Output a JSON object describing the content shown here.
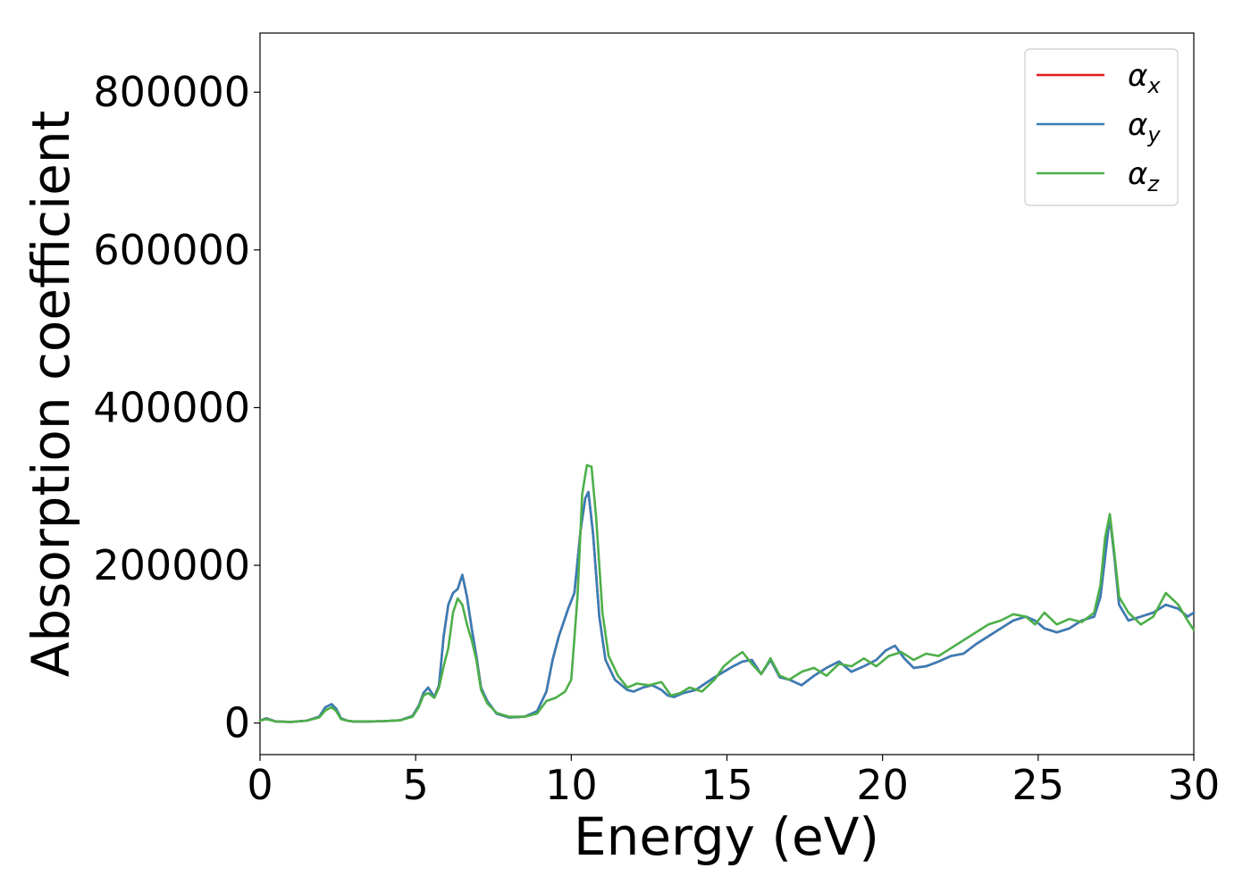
{
  "chart_data": {
    "type": "line",
    "xlabel": "Energy (eV)",
    "ylabel": "Absorption coefficient",
    "xlim": [
      0,
      30
    ],
    "ylim": [
      -40000,
      875000
    ],
    "xticks": [
      0,
      5,
      10,
      15,
      20,
      25,
      30
    ],
    "yticks": [
      0,
      200000,
      400000,
      600000,
      800000
    ],
    "xtick_labels": [
      "0",
      "5",
      "10",
      "15",
      "20",
      "25",
      "30"
    ],
    "ytick_labels": [
      "0",
      "200000",
      "400000",
      "600000",
      "800000"
    ],
    "grid": false,
    "legend_position": "top-right",
    "series": [
      {
        "name": "α_x",
        "legend_symbol": "α",
        "legend_sub": "x",
        "color": "#e41a1c",
        "x": [
          0,
          0.2,
          0.5,
          1,
          1.5,
          1.9,
          2.1,
          2.3,
          2.45,
          2.6,
          2.8,
          3.0,
          3.5,
          4.0,
          4.5,
          4.9,
          5.1,
          5.25,
          5.4,
          5.6,
          5.75,
          5.9,
          6.05,
          6.2,
          6.35,
          6.5,
          6.65,
          6.8,
          6.95,
          7.1,
          7.3,
          7.6,
          8.0,
          8.5,
          8.9,
          9.2,
          9.4,
          9.6,
          9.9,
          10.1,
          10.3,
          10.45,
          10.55,
          10.7,
          10.9,
          11.1,
          11.4,
          11.8,
          12.0,
          12.3,
          12.6,
          12.9,
          13.1,
          13.3,
          13.6,
          14.0,
          14.3,
          14.6,
          14.9,
          15.2,
          15.5,
          15.8,
          16.1,
          16.4,
          16.7,
          17.0,
          17.4,
          17.8,
          18.2,
          18.6,
          19.0,
          19.4,
          19.8,
          20.1,
          20.4,
          20.7,
          21.0,
          21.4,
          21.8,
          22.2,
          22.6,
          23.0,
          23.4,
          23.8,
          24.2,
          24.6,
          24.9,
          25.2,
          25.6,
          26.0,
          26.4,
          26.8,
          27.0,
          27.15,
          27.3,
          27.45,
          27.6,
          27.9,
          28.3,
          28.7,
          29.1,
          29.5,
          29.8,
          30
        ],
        "y": [
          3000,
          6000,
          2000,
          1500,
          3000,
          8000,
          20000,
          24000,
          18000,
          6000,
          3000,
          2000,
          2000,
          2500,
          3500,
          9000,
          22000,
          38000,
          45000,
          33000,
          48000,
          110000,
          150000,
          165000,
          170000,
          188000,
          160000,
          120000,
          85000,
          45000,
          28000,
          12000,
          7000,
          8000,
          15000,
          40000,
          80000,
          110000,
          145000,
          165000,
          245000,
          285000,
          293000,
          240000,
          135000,
          80000,
          55000,
          42000,
          40000,
          45000,
          48000,
          42000,
          35000,
          33000,
          38000,
          42000,
          50000,
          58000,
          65000,
          72000,
          78000,
          80000,
          62000,
          80000,
          58000,
          55000,
          48000,
          60000,
          70000,
          78000,
          65000,
          72000,
          80000,
          92000,
          98000,
          82000,
          70000,
          72000,
          78000,
          85000,
          88000,
          100000,
          110000,
          120000,
          130000,
          135000,
          130000,
          120000,
          115000,
          120000,
          130000,
          135000,
          160000,
          210000,
          262000,
          210000,
          150000,
          130000,
          135000,
          140000,
          150000,
          145000,
          135000,
          140000
        ]
      },
      {
        "name": "α_y",
        "legend_symbol": "α",
        "legend_sub": "y",
        "color": "#377eb8",
        "x": [
          0,
          0.2,
          0.5,
          1,
          1.5,
          1.9,
          2.1,
          2.3,
          2.45,
          2.6,
          2.8,
          3.0,
          3.5,
          4.0,
          4.5,
          4.9,
          5.1,
          5.25,
          5.4,
          5.6,
          5.75,
          5.9,
          6.05,
          6.2,
          6.35,
          6.5,
          6.65,
          6.8,
          6.95,
          7.1,
          7.3,
          7.6,
          8.0,
          8.5,
          8.9,
          9.2,
          9.4,
          9.6,
          9.9,
          10.1,
          10.3,
          10.45,
          10.55,
          10.7,
          10.9,
          11.1,
          11.4,
          11.8,
          12.0,
          12.3,
          12.6,
          12.9,
          13.1,
          13.3,
          13.6,
          14.0,
          14.3,
          14.6,
          14.9,
          15.2,
          15.5,
          15.8,
          16.1,
          16.4,
          16.7,
          17.0,
          17.4,
          17.8,
          18.2,
          18.6,
          19.0,
          19.4,
          19.8,
          20.1,
          20.4,
          20.7,
          21.0,
          21.4,
          21.8,
          22.2,
          22.6,
          23.0,
          23.4,
          23.8,
          24.2,
          24.6,
          24.9,
          25.2,
          25.6,
          26.0,
          26.4,
          26.8,
          27.0,
          27.15,
          27.3,
          27.45,
          27.6,
          27.9,
          28.3,
          28.7,
          29.1,
          29.5,
          29.8,
          30
        ],
        "y": [
          3000,
          6000,
          2000,
          1500,
          3000,
          8000,
          20000,
          24000,
          18000,
          6000,
          3000,
          2000,
          2000,
          2500,
          3500,
          9000,
          22000,
          38000,
          45000,
          33000,
          48000,
          110000,
          150000,
          165000,
          170000,
          188000,
          160000,
          120000,
          85000,
          45000,
          28000,
          12000,
          7000,
          8000,
          15000,
          40000,
          80000,
          110000,
          145000,
          165000,
          245000,
          285000,
          293000,
          240000,
          135000,
          80000,
          55000,
          42000,
          40000,
          45000,
          48000,
          42000,
          35000,
          33000,
          38000,
          42000,
          50000,
          58000,
          65000,
          72000,
          78000,
          80000,
          62000,
          80000,
          58000,
          55000,
          48000,
          60000,
          70000,
          78000,
          65000,
          72000,
          80000,
          92000,
          98000,
          82000,
          70000,
          72000,
          78000,
          85000,
          88000,
          100000,
          110000,
          120000,
          130000,
          135000,
          130000,
          120000,
          115000,
          120000,
          130000,
          135000,
          160000,
          210000,
          262000,
          210000,
          150000,
          130000,
          135000,
          140000,
          150000,
          145000,
          135000,
          140000
        ]
      },
      {
        "name": "α_z",
        "legend_symbol": "α",
        "legend_sub": "z",
        "color": "#4daf4a",
        "x": [
          0,
          0.2,
          0.5,
          1,
          1.5,
          1.9,
          2.1,
          2.3,
          2.45,
          2.6,
          2.8,
          3.0,
          3.5,
          4.0,
          4.5,
          4.9,
          5.1,
          5.25,
          5.4,
          5.6,
          5.75,
          5.9,
          6.05,
          6.2,
          6.35,
          6.5,
          6.65,
          6.8,
          6.95,
          7.1,
          7.3,
          7.6,
          8.0,
          8.5,
          8.9,
          9.2,
          9.5,
          9.8,
          10.0,
          10.2,
          10.35,
          10.5,
          10.65,
          10.8,
          11.0,
          11.2,
          11.5,
          11.8,
          12.1,
          12.5,
          12.9,
          13.2,
          13.5,
          13.8,
          14.2,
          14.6,
          14.9,
          15.2,
          15.5,
          15.8,
          16.1,
          16.4,
          16.7,
          17.0,
          17.4,
          17.8,
          18.2,
          18.6,
          19.0,
          19.4,
          19.8,
          20.2,
          20.6,
          21.0,
          21.4,
          21.8,
          22.2,
          22.6,
          23.0,
          23.4,
          23.8,
          24.2,
          24.6,
          24.9,
          25.2,
          25.6,
          26.0,
          26.4,
          26.8,
          27.0,
          27.15,
          27.3,
          27.45,
          27.6,
          27.9,
          28.3,
          28.7,
          29.1,
          29.5,
          29.8,
          30
        ],
        "y": [
          3000,
          5000,
          2000,
          1500,
          3000,
          7000,
          16000,
          20000,
          15000,
          5000,
          3000,
          2000,
          2000,
          2500,
          3500,
          8000,
          20000,
          35000,
          38000,
          32000,
          45000,
          72000,
          95000,
          140000,
          158000,
          150000,
          125000,
          105000,
          80000,
          42000,
          25000,
          13000,
          8000,
          8000,
          12000,
          28000,
          32000,
          40000,
          55000,
          160000,
          290000,
          327000,
          325000,
          260000,
          140000,
          85000,
          60000,
          45000,
          50000,
          48000,
          52000,
          35000,
          38000,
          45000,
          40000,
          55000,
          72000,
          82000,
          90000,
          75000,
          62000,
          82000,
          60000,
          55000,
          65000,
          70000,
          60000,
          75000,
          72000,
          82000,
          72000,
          85000,
          90000,
          80000,
          88000,
          85000,
          95000,
          105000,
          115000,
          125000,
          130000,
          138000,
          135000,
          125000,
          140000,
          125000,
          132000,
          128000,
          140000,
          175000,
          235000,
          265000,
          215000,
          160000,
          140000,
          125000,
          135000,
          165000,
          150000,
          130000,
          118000
        ]
      }
    ]
  }
}
